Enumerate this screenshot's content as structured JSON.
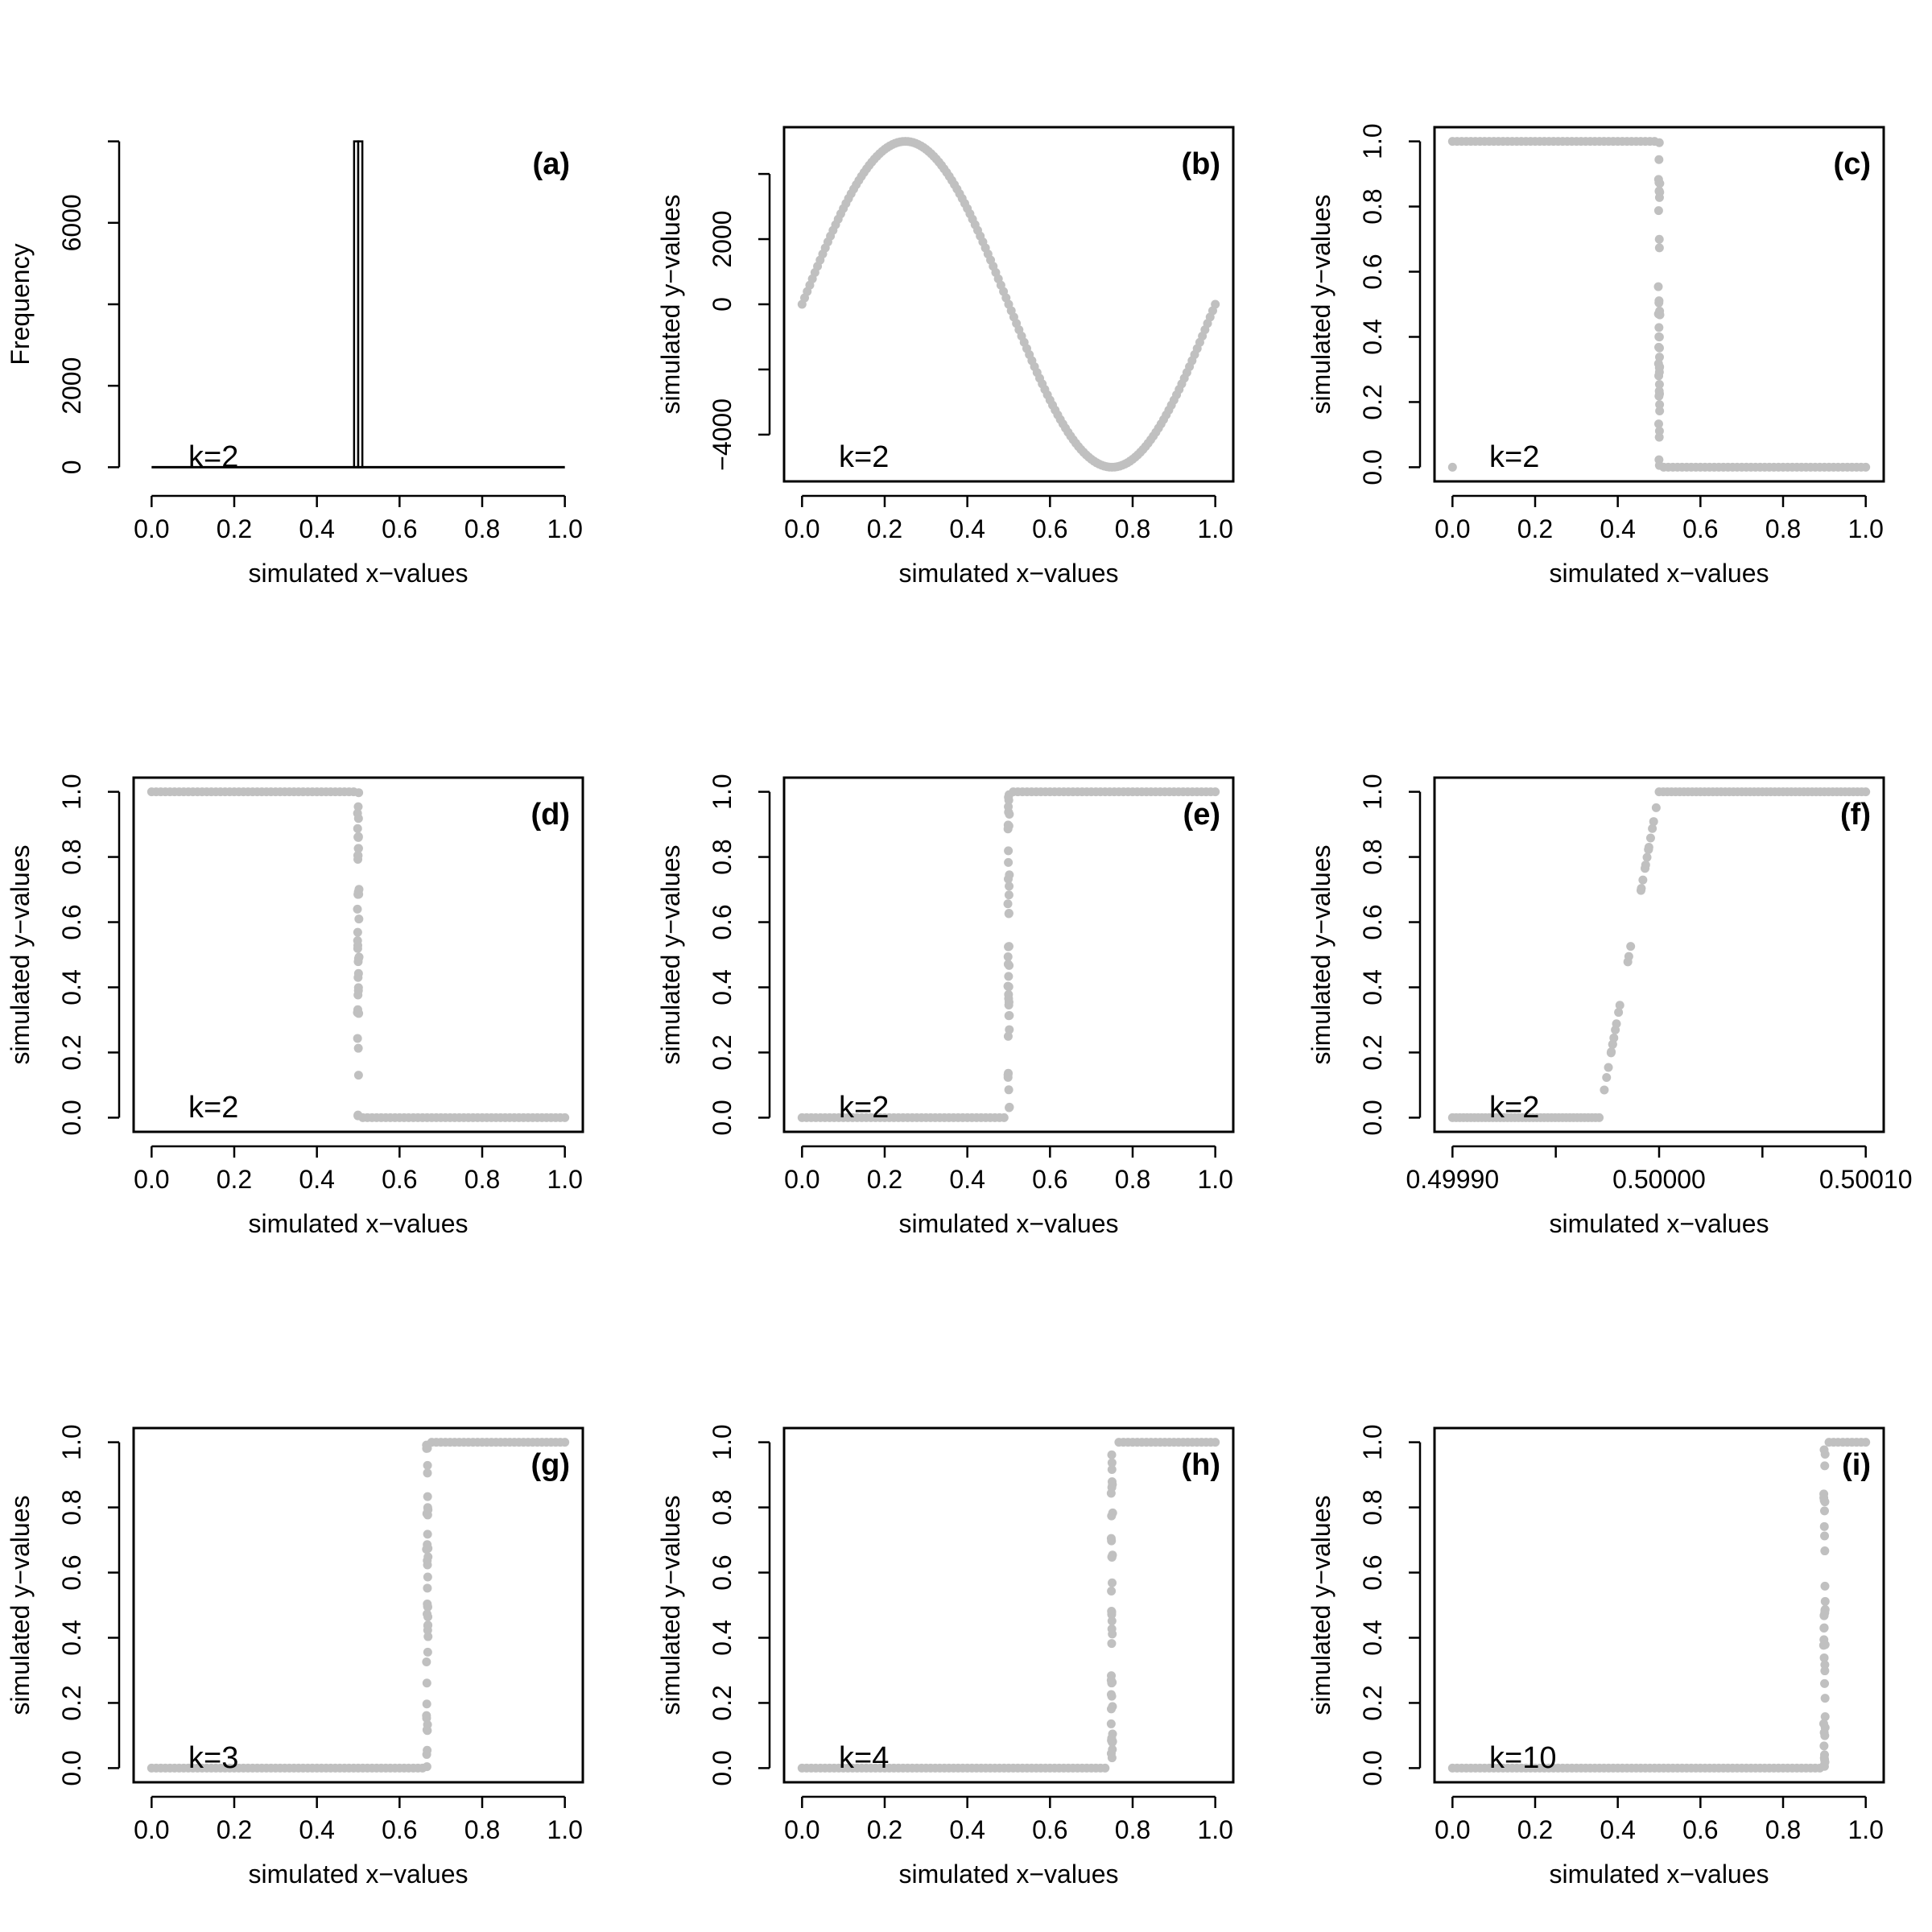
{
  "chart_data": [
    {
      "panel": "(a)",
      "k_label": "k=2",
      "type": "bar",
      "xlabel": "simulated x−values",
      "ylabel": "Frequency",
      "xlim": [
        0,
        1
      ],
      "ylim": [
        0,
        8000
      ],
      "xticks": [
        "0.0",
        "0.2",
        "0.4",
        "0.6",
        "0.8",
        "1.0"
      ],
      "yticks": [
        "0",
        "2000",
        "6000"
      ],
      "ytick_values": [
        0,
        2000,
        6000
      ],
      "y_axis_extra_ticks": [
        4000,
        8000
      ],
      "bins": [
        {
          "x0": 0.49,
          "x1": 0.5,
          "count": 8000
        },
        {
          "x0": 0.5,
          "x1": 0.51,
          "count": 8000
        }
      ],
      "boxed": false,
      "baseline": true
    },
    {
      "panel": "(b)",
      "k_label": "k=2",
      "type": "scatter",
      "curve": "sine",
      "xlabel": "simulated x−values",
      "ylabel": "simulated y−values",
      "xlim": [
        0,
        1
      ],
      "ylim": [
        -5000,
        5000
      ],
      "xticks": [
        "0.0",
        "0.2",
        "0.4",
        "0.6",
        "0.8",
        "1.0"
      ],
      "yticks": [
        "−4000",
        "0",
        "2000"
      ],
      "ytick_values": [
        -4000,
        0,
        2000
      ],
      "y_axis_extra_ticks": [
        -2000,
        4000
      ],
      "amplitude": 5000,
      "boxed": true
    },
    {
      "panel": "(c)",
      "k_label": "k=2",
      "type": "scatter",
      "curve": "step_down",
      "xlabel": "simulated x−values",
      "ylabel": "simulated y−values",
      "xlim": [
        0,
        1
      ],
      "ylim": [
        0,
        1
      ],
      "xticks": [
        "0.0",
        "0.2",
        "0.4",
        "0.6",
        "0.8",
        "1.0"
      ],
      "yticks": [
        "0.0",
        "0.2",
        "0.4",
        "0.6",
        "0.8",
        "1.0"
      ],
      "ytick_values": [
        0,
        0.2,
        0.4,
        0.6,
        0.8,
        1.0
      ],
      "threshold": 0.5,
      "outlier": [
        0.0,
        0.0
      ],
      "boxed": true
    },
    {
      "panel": "(d)",
      "k_label": "k=2",
      "type": "scatter",
      "curve": "step_down",
      "xlabel": "simulated x−values",
      "ylabel": "simulated y−values",
      "xlim": [
        0,
        1
      ],
      "ylim": [
        0,
        1
      ],
      "xticks": [
        "0.0",
        "0.2",
        "0.4",
        "0.6",
        "0.8",
        "1.0"
      ],
      "yticks": [
        "0.0",
        "0.2",
        "0.4",
        "0.6",
        "0.8",
        "1.0"
      ],
      "ytick_values": [
        0,
        0.2,
        0.4,
        0.6,
        0.8,
        1.0
      ],
      "threshold": 0.5,
      "boxed": true
    },
    {
      "panel": "(e)",
      "k_label": "k=2",
      "type": "scatter",
      "curve": "step_up",
      "xlabel": "simulated x−values",
      "ylabel": "simulated y−values",
      "xlim": [
        0,
        1
      ],
      "ylim": [
        0,
        1
      ],
      "xticks": [
        "0.0",
        "0.2",
        "0.4",
        "0.6",
        "0.8",
        "1.0"
      ],
      "yticks": [
        "0.0",
        "0.2",
        "0.4",
        "0.6",
        "0.8",
        "1.0"
      ],
      "ytick_values": [
        0,
        0.2,
        0.4,
        0.6,
        0.8,
        1.0
      ],
      "threshold": 0.5,
      "boxed": true
    },
    {
      "panel": "(f)",
      "k_label": "k=2",
      "type": "scatter",
      "curve": "ramp",
      "xlabel": "simulated x−values",
      "ylabel": "simulated y−values",
      "xlim": [
        0.4999,
        0.5001
      ],
      "ylim": [
        0,
        1
      ],
      "xticks": [
        "0.49990",
        "0.50000",
        "0.50010"
      ],
      "xtick_values": [
        0.4999,
        0.5,
        0.5001
      ],
      "x_axis_extra_ticks": [
        0.49995,
        0.50005
      ],
      "yticks": [
        "0.0",
        "0.2",
        "0.4",
        "0.6",
        "0.8",
        "1.0"
      ],
      "ytick_values": [
        0,
        0.2,
        0.4,
        0.6,
        0.8,
        1.0
      ],
      "ramp": [
        0.499971,
        0.5
      ],
      "boxed": true
    },
    {
      "panel": "(g)",
      "k_label": "k=3",
      "type": "scatter",
      "curve": "step_up",
      "xlabel": "simulated x−values",
      "ylabel": "simulated y−values",
      "xlim": [
        0,
        1
      ],
      "ylim": [
        0,
        1
      ],
      "xticks": [
        "0.0",
        "0.2",
        "0.4",
        "0.6",
        "0.8",
        "1.0"
      ],
      "yticks": [
        "0.0",
        "0.2",
        "0.4",
        "0.6",
        "0.8",
        "1.0"
      ],
      "ytick_values": [
        0,
        0.2,
        0.4,
        0.6,
        0.8,
        1.0
      ],
      "threshold": 0.667,
      "boxed": true
    },
    {
      "panel": "(h)",
      "k_label": "k=4",
      "type": "scatter",
      "curve": "step_up",
      "xlabel": "simulated x−values",
      "ylabel": "simulated y−values",
      "xlim": [
        0,
        1
      ],
      "ylim": [
        0,
        1
      ],
      "xticks": [
        "0.0",
        "0.2",
        "0.4",
        "0.6",
        "0.8",
        "1.0"
      ],
      "yticks": [
        "0.0",
        "0.2",
        "0.4",
        "0.6",
        "0.8",
        "1.0"
      ],
      "ytick_values": [
        0,
        0.2,
        0.4,
        0.6,
        0.8,
        1.0
      ],
      "threshold": 0.75,
      "boxed": true
    },
    {
      "panel": "(i)",
      "k_label": "k=10",
      "type": "scatter",
      "curve": "step_up",
      "xlabel": "simulated x−values",
      "ylabel": "simulated y−values",
      "xlim": [
        0,
        1
      ],
      "ylim": [
        0,
        1
      ],
      "xticks": [
        "0.0",
        "0.2",
        "0.4",
        "0.6",
        "0.8",
        "1.0"
      ],
      "yticks": [
        "0.0",
        "0.2",
        "0.4",
        "0.6",
        "0.8",
        "1.0"
      ],
      "ytick_values": [
        0,
        0.2,
        0.4,
        0.6,
        0.8,
        1.0
      ],
      "threshold": 0.9,
      "boxed": true
    }
  ],
  "colors": {
    "points": "#c0c0c0",
    "axes": "#000000",
    "background": "#ffffff"
  }
}
